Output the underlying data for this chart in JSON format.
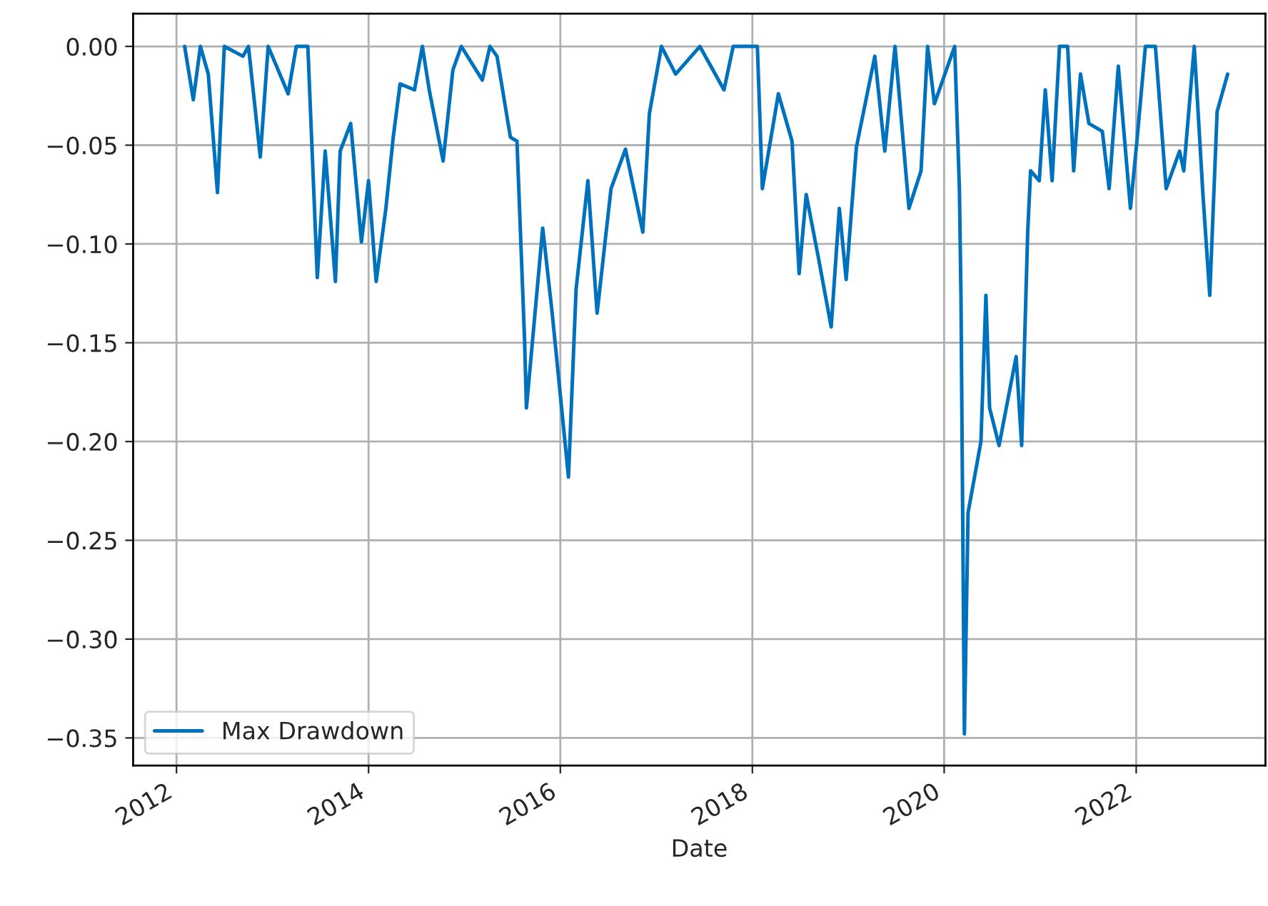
{
  "chart_data": {
    "type": "line",
    "xlabel": "Date",
    "legend": "bottom left",
    "grid": true,
    "xlim": [
      "2011-07-20",
      "2023-05-08"
    ],
    "ylim": [
      -0.364,
      0.0166
    ],
    "xticks": [
      {
        "value": "2012-01-01",
        "label": "2012"
      },
      {
        "value": "2014-01-01",
        "label": "2014"
      },
      {
        "value": "2016-01-01",
        "label": "2016"
      },
      {
        "value": "2018-01-01",
        "label": "2018"
      },
      {
        "value": "2020-01-01",
        "label": "2020"
      },
      {
        "value": "2022-01-01",
        "label": "2022"
      }
    ],
    "yticks": [
      {
        "value": 0,
        "label": "0.00"
      },
      {
        "value": -0.05,
        "label": "−0.05"
      },
      {
        "value": -0.1,
        "label": "−0.10"
      },
      {
        "value": -0.15,
        "label": "−0.15"
      },
      {
        "value": -0.2,
        "label": "−0.20"
      },
      {
        "value": -0.25,
        "label": "−0.25"
      },
      {
        "value": -0.3,
        "label": "−0.30"
      },
      {
        "value": -0.35,
        "label": "−0.35"
      }
    ],
    "series": [
      {
        "name": "Max Drawdown",
        "color": "#0072bd",
        "x": [
          "2012-02-01",
          "2012-03-05",
          "2012-04-01",
          "2012-05-01",
          "2012-06-05",
          "2012-07-01",
          "2012-09-10",
          "2012-10-01",
          "2012-11-15",
          "2012-12-15",
          "2013-03-01",
          "2013-04-01",
          "2013-05-15",
          "2013-06-20",
          "2013-07-20",
          "2013-08-28",
          "2013-09-15",
          "2013-10-25",
          "2013-12-05",
          "2014-01-01",
          "2014-01-30",
          "2014-03-08",
          "2014-04-05",
          "2014-05-01",
          "2014-06-25",
          "2014-07-25",
          "2014-08-20",
          "2014-10-12",
          "2014-11-18",
          "2014-12-20",
          "2015-03-10",
          "2015-04-08",
          "2015-05-05",
          "2015-06-25",
          "2015-07-20",
          "2015-08-18",
          "2015-08-25",
          "2015-10-26",
          "2015-12-01",
          "2016-02-01",
          "2016-03-01",
          "2016-04-15",
          "2016-05-20",
          "2016-06-15",
          "2016-07-12",
          "2016-09-05",
          "2016-11-10",
          "2016-12-05",
          "2017-01-20",
          "2017-03-15",
          "2017-06-15",
          "2017-09-15",
          "2017-10-20",
          "2018-01-20",
          "2018-02-08",
          "2018-04-10",
          "2018-06-01",
          "2018-06-28",
          "2018-07-25",
          "2018-09-08",
          "2018-10-28",
          "2018-11-28",
          "2018-12-24",
          "2019-02-01",
          "2019-04-12",
          "2019-05-20",
          "2019-06-28",
          "2019-08-20",
          "2019-10-05",
          "2019-10-30",
          "2019-11-25",
          "2020-02-10",
          "2020-02-28",
          "2020-03-05",
          "2020-03-18",
          "2020-04-01",
          "2020-05-20",
          "2020-06-08",
          "2020-06-22",
          "2020-07-28",
          "2020-10-01",
          "2020-10-22",
          "2020-11-14",
          "2020-11-25",
          "2020-12-28",
          "2021-01-20",
          "2021-02-15",
          "2021-03-15",
          "2021-04-15",
          "2021-05-08",
          "2021-06-03",
          "2021-07-05",
          "2021-08-25",
          "2021-09-20",
          "2021-10-25",
          "2021-12-10",
          "2022-01-05",
          "2022-02-05",
          "2022-03-15",
          "2022-04-25",
          "2022-06-15",
          "2022-07-01",
          "2022-08-10",
          "2022-09-12",
          "2022-10-08",
          "2022-11-05",
          "2022-12-15"
        ],
        "values": [
          0,
          -0.027,
          0,
          -0.014,
          -0.074,
          0,
          -0.005,
          0,
          -0.056,
          0,
          -0.024,
          0,
          0,
          -0.117,
          -0.053,
          -0.119,
          -0.053,
          -0.039,
          -0.099,
          -0.068,
          -0.119,
          -0.082,
          -0.046,
          -0.019,
          -0.022,
          0,
          -0.022,
          -0.058,
          -0.012,
          0,
          -0.017,
          0,
          -0.005,
          -0.046,
          -0.048,
          -0.149,
          -0.183,
          -0.092,
          -0.135,
          -0.218,
          -0.123,
          -0.068,
          -0.135,
          -0.104,
          -0.072,
          -0.052,
          -0.094,
          -0.034,
          0,
          -0.014,
          0,
          -0.022,
          0,
          0,
          -0.072,
          -0.024,
          -0.048,
          -0.115,
          -0.075,
          -0.106,
          -0.142,
          -0.082,
          -0.118,
          -0.051,
          -0.005,
          -0.053,
          0,
          -0.082,
          -0.063,
          0,
          -0.029,
          0,
          -0.072,
          -0.126,
          -0.348,
          -0.236,
          -0.2,
          -0.126,
          -0.183,
          -0.202,
          -0.157,
          -0.202,
          -0.094,
          -0.063,
          -0.068,
          -0.022,
          -0.068,
          0,
          0,
          -0.063,
          -0.014,
          -0.039,
          -0.043,
          -0.072,
          -0.01,
          -0.082,
          -0.046,
          0,
          0,
          -0.072,
          -0.053,
          -0.063,
          0,
          -0.075,
          -0.126,
          -0.033,
          -0.014
        ]
      }
    ]
  }
}
